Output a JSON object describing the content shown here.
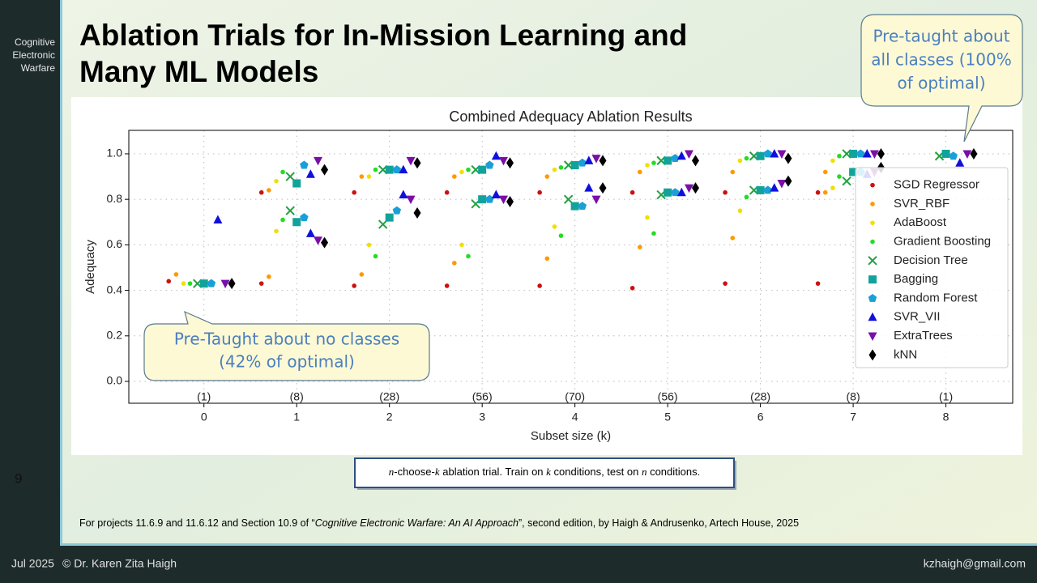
{
  "side_label": [
    "Cognitive",
    "Electronic",
    "Warfare"
  ],
  "title": [
    "Ablation Trials for In-Mission Learning and",
    "Many ML Models"
  ],
  "callout_top": [
    "Pre-taught about",
    "all classes (100%",
    "of optimal)"
  ],
  "callout_bottom": [
    "Pre-Taught about no classes",
    "(42% of optimal)"
  ],
  "slide_number": "9",
  "caption": [
    "n",
    "-choose-",
    "k",
    " ablation trial. Train on ",
    "k",
    " conditions, test on ",
    "n",
    " conditions."
  ],
  "footnote": [
    "For projects 11.6.9 and 11.6.12 and Section 10.9 of “",
    "Cognitive Electronic Warfare: An AI Approach",
    "”, second edition, by Haigh & Andrusenko, Artech House, 2025"
  ],
  "footer": {
    "date": "Jul 2025",
    "author": "© Dr. Karen Zita Haigh",
    "email": "kzhaigh@gmail.com"
  },
  "chart_data": {
    "type": "scatter",
    "title": "Combined Adequacy Ablation Results",
    "x_label": "Subset size (k)",
    "y_label": "Adequacy",
    "xlim": [
      -0.81,
      8.72
    ],
    "ylim": [
      -0.096,
      1.103
    ],
    "xticks": [
      0,
      1,
      2,
      3,
      4,
      5,
      6,
      7,
      8
    ],
    "yticks": [
      {
        "value": 0,
        "label": "0.0"
      },
      0.2,
      0.4,
      0.6,
      0.8,
      {
        "value": 1,
        "label": "1.0"
      }
    ],
    "group_labels": [
      "(1)",
      "(8)",
      "(28)",
      "(56)",
      "(70)",
      "(56)",
      "(28)",
      "(8)",
      "(1)"
    ],
    "grid": true,
    "legend": "right",
    "series": [
      {
        "name": "SGD Regressor",
        "color": "#cc1111",
        "marker": "dot",
        "x": [
          -0.38,
          0.62,
          0.62,
          1.62,
          1.62,
          2.62,
          2.62,
          3.62,
          3.62,
          4.62,
          4.62,
          5.62,
          5.62,
          6.62,
          6.62
        ],
        "values": [
          0.44,
          0.43,
          0.83,
          0.42,
          0.83,
          0.42,
          0.83,
          0.42,
          0.83,
          0.41,
          0.83,
          0.43,
          0.83,
          0.43,
          0.83
        ]
      },
      {
        "name": "SVR_RBF",
        "color": "#ff9900",
        "marker": "dot",
        "x": [
          -0.3,
          0.7,
          0.7,
          1.7,
          1.7,
          2.7,
          2.7,
          3.7,
          3.7,
          4.7,
          4.7,
          5.7,
          5.7,
          6.7,
          6.7
        ],
        "values": [
          0.47,
          0.46,
          0.84,
          0.47,
          0.9,
          0.52,
          0.9,
          0.54,
          0.9,
          0.59,
          0.92,
          0.63,
          0.92,
          0.83,
          0.92
        ]
      },
      {
        "name": "AdaBoost",
        "color": "#f0e000",
        "marker": "dot",
        "x": [
          -0.22,
          0.78,
          0.78,
          1.78,
          1.78,
          2.78,
          2.78,
          3.78,
          3.78,
          4.78,
          4.78,
          5.78,
          5.78,
          6.78,
          6.78
        ],
        "values": [
          0.43,
          0.66,
          0.88,
          0.6,
          0.9,
          0.6,
          0.92,
          0.68,
          0.93,
          0.72,
          0.95,
          0.75,
          0.97,
          0.85,
          0.97
        ]
      },
      {
        "name": "Gradient Boosting",
        "color": "#22dd22",
        "marker": "dot",
        "x": [
          -0.15,
          0.85,
          0.85,
          1.85,
          1.85,
          2.85,
          2.85,
          3.85,
          3.85,
          4.85,
          4.85,
          5.85,
          5.85,
          6.85,
          6.85
        ],
        "values": [
          0.43,
          0.71,
          0.92,
          0.55,
          0.93,
          0.55,
          0.93,
          0.64,
          0.94,
          0.65,
          0.96,
          0.81,
          0.98,
          0.9,
          0.99
        ]
      },
      {
        "name": "Decision Tree",
        "color": "#22a040",
        "marker": "x",
        "x": [
          -0.07,
          0.93,
          0.93,
          1.93,
          1.93,
          2.93,
          2.93,
          3.93,
          3.93,
          4.93,
          4.93,
          5.93,
          5.93,
          6.93,
          6.93,
          7.93
        ],
        "values": [
          0.43,
          0.75,
          0.9,
          0.69,
          0.93,
          0.78,
          0.93,
          0.8,
          0.95,
          0.82,
          0.97,
          0.84,
          0.99,
          0.88,
          1.0,
          0.99
        ]
      },
      {
        "name": "Bagging",
        "color": "#11a39b",
        "marker": "square",
        "x": [
          0,
          1,
          1,
          2,
          2,
          3,
          3,
          4,
          4,
          5,
          5,
          6,
          6,
          7,
          7,
          8
        ],
        "values": [
          0.43,
          0.7,
          0.87,
          0.72,
          0.93,
          0.8,
          0.93,
          0.77,
          0.95,
          0.83,
          0.97,
          0.84,
          0.99,
          0.92,
          1.0,
          1.0
        ]
      },
      {
        "name": "Random Forest",
        "color": "#1a9fd8",
        "marker": "pentagon",
        "x": [
          0.08,
          1.08,
          1.08,
          2.08,
          2.08,
          3.08,
          3.08,
          4.08,
          4.08,
          5.08,
          5.08,
          6.08,
          6.08,
          7.08,
          7.08,
          8.08
        ],
        "values": [
          0.43,
          0.72,
          0.95,
          0.75,
          0.93,
          0.8,
          0.95,
          0.77,
          0.96,
          0.83,
          0.98,
          0.84,
          1.0,
          0.92,
          1.0,
          0.99
        ]
      },
      {
        "name": "SVR_VII",
        "color": "#1010dd",
        "marker": "triangle-up",
        "x": [
          0.15,
          1.15,
          1.15,
          2.15,
          2.15,
          3.15,
          3.15,
          4.15,
          4.15,
          5.15,
          5.15,
          6.15,
          6.15,
          7.15,
          7.15,
          8.15
        ],
        "values": [
          0.71,
          0.65,
          0.91,
          0.82,
          0.93,
          0.82,
          0.99,
          0.85,
          0.97,
          0.83,
          0.99,
          0.85,
          1.0,
          0.91,
          1.0,
          0.96
        ]
      },
      {
        "name": "ExtraTrees",
        "color": "#7a0fa8",
        "marker": "triangle-down",
        "x": [
          0.23,
          1.23,
          1.23,
          2.23,
          2.23,
          3.23,
          3.23,
          4.23,
          4.23,
          5.23,
          5.23,
          6.23,
          6.23,
          7.23,
          7.23,
          8.23
        ],
        "values": [
          0.43,
          0.62,
          0.97,
          0.8,
          0.97,
          0.8,
          0.97,
          0.8,
          0.98,
          0.85,
          1.0,
          0.87,
          1.0,
          0.92,
          1.0,
          1.0
        ]
      },
      {
        "name": "kNN",
        "color": "#000000",
        "marker": "diamond",
        "x": [
          0.3,
          1.3,
          1.3,
          2.3,
          2.3,
          3.3,
          3.3,
          4.3,
          4.3,
          5.3,
          5.3,
          6.3,
          6.3,
          7.3,
          7.3,
          8.3
        ],
        "values": [
          0.43,
          0.61,
          0.93,
          0.74,
          0.96,
          0.79,
          0.96,
          0.85,
          0.97,
          0.85,
          0.97,
          0.88,
          0.98,
          0.94,
          1.0,
          1.0
        ]
      }
    ]
  }
}
